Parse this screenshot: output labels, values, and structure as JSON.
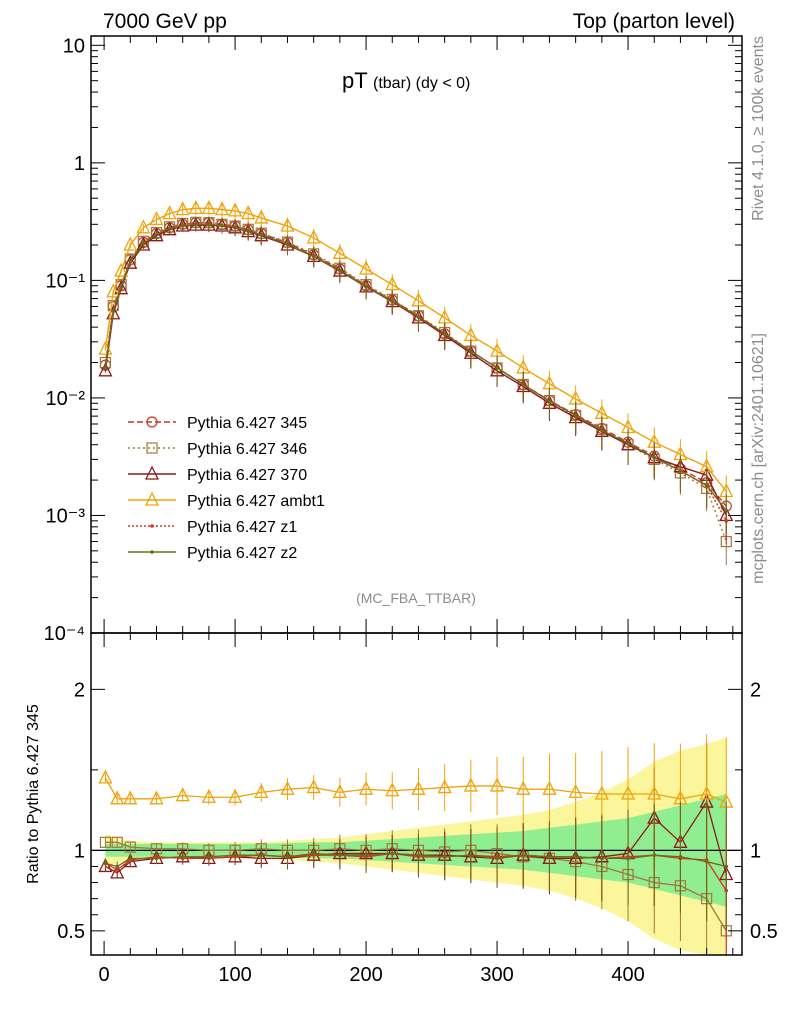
{
  "header": {
    "energy_label": "7000 GeV pp",
    "process_label": "Top (parton level)"
  },
  "side_labels": {
    "rivet": "Rivet 4.1.0, ≥ 100k events",
    "mcplots": "mcplots.cern.ch [arXiv:2401.10621]"
  },
  "chart_data": [
    {
      "type": "line",
      "panel": "main",
      "title_main": "pT",
      "title_sub": "(tbar) (dy < 0)",
      "analysis_label": "(MC_FBA_TTBAR)",
      "yscale": "log",
      "ylim": [
        0.0001,
        12
      ],
      "xlim": [
        -10,
        487
      ],
      "ytick_labels": [
        "10",
        "1",
        "10⁻¹",
        "10⁻²",
        "10⁻³",
        "10⁻⁴"
      ],
      "ytick_values": [
        10,
        1,
        0.1,
        0.01,
        0.001,
        0.0001
      ],
      "x": [
        1,
        7,
        13,
        20,
        30,
        40,
        50,
        60,
        70,
        80,
        90,
        100,
        110,
        120,
        140,
        160,
        180,
        200,
        220,
        240,
        260,
        280,
        300,
        320,
        340,
        360,
        380,
        400,
        420,
        440,
        460,
        475
      ],
      "series": [
        {
          "name": "Pythia 6.427 345",
          "color": "#c0392b",
          "marker": "circle",
          "dash": "6,3",
          "values": [
            0.019,
            0.06,
            0.09,
            0.15,
            0.21,
            0.25,
            0.28,
            0.3,
            0.31,
            0.31,
            0.3,
            0.29,
            0.27,
            0.25,
            0.21,
            0.165,
            0.125,
            0.09,
            0.068,
            0.05,
            0.035,
            0.025,
            0.018,
            0.013,
            0.0095,
            0.0072,
            0.0055,
            0.0042,
            0.0032,
            0.0025,
            0.0019,
            0.0012
          ]
        },
        {
          "name": "Pythia 6.427 346",
          "color": "#a0783c",
          "marker": "square",
          "dash": "2,3",
          "values": [
            0.02,
            0.061,
            0.092,
            0.152,
            0.215,
            0.255,
            0.285,
            0.305,
            0.312,
            0.31,
            0.3,
            0.29,
            0.272,
            0.252,
            0.212,
            0.168,
            0.127,
            0.092,
            0.069,
            0.05,
            0.036,
            0.025,
            0.018,
            0.013,
            0.0095,
            0.0071,
            0.0054,
            0.004,
            0.003,
            0.0023,
            0.0017,
            0.0006
          ]
        },
        {
          "name": "Pythia 6.427 370",
          "color": "#8b1a1a",
          "marker": "triangle",
          "dash": "",
          "values": [
            0.017,
            0.052,
            0.085,
            0.14,
            0.2,
            0.24,
            0.27,
            0.29,
            0.295,
            0.295,
            0.29,
            0.28,
            0.26,
            0.24,
            0.2,
            0.16,
            0.12,
            0.088,
            0.066,
            0.048,
            0.034,
            0.024,
            0.017,
            0.0125,
            0.009,
            0.0068,
            0.0052,
            0.004,
            0.0031,
            0.0026,
            0.0022,
            0.001
          ]
        },
        {
          "name": "Pythia 6.427 ambt1",
          "color": "#f0a30a",
          "marker": "triangle",
          "dash": "",
          "values": [
            0.026,
            0.08,
            0.12,
            0.2,
            0.28,
            0.33,
            0.37,
            0.4,
            0.41,
            0.41,
            0.4,
            0.39,
            0.37,
            0.34,
            0.29,
            0.23,
            0.17,
            0.125,
            0.092,
            0.067,
            0.048,
            0.034,
            0.025,
            0.018,
            0.0132,
            0.0098,
            0.0074,
            0.0056,
            0.0042,
            0.0033,
            0.0026,
            0.0016
          ]
        },
        {
          "name": "Pythia 6.427 z1",
          "color": "#e03020",
          "marker": "dot",
          "dash": "2,2",
          "values": [
            0.018,
            0.055,
            0.087,
            0.145,
            0.205,
            0.245,
            0.275,
            0.292,
            0.298,
            0.297,
            0.292,
            0.282,
            0.262,
            0.243,
            0.203,
            0.16,
            0.121,
            0.088,
            0.066,
            0.049,
            0.035,
            0.025,
            0.018,
            0.013,
            0.0094,
            0.007,
            0.0053,
            0.0041,
            0.0031,
            0.0024,
            0.0018,
            0.0009
          ]
        },
        {
          "name": "Pythia 6.427 z2",
          "color": "#6b6b1a",
          "marker": "dot",
          "dash": "",
          "values": [
            0.018,
            0.055,
            0.088,
            0.146,
            0.206,
            0.246,
            0.276,
            0.293,
            0.3,
            0.299,
            0.293,
            0.283,
            0.263,
            0.244,
            0.204,
            0.161,
            0.122,
            0.089,
            0.067,
            0.049,
            0.035,
            0.025,
            0.018,
            0.013,
            0.0094,
            0.0071,
            0.0053,
            0.0041,
            0.0031,
            0.0024,
            0.0018,
            0.0011
          ]
        }
      ]
    },
    {
      "type": "line",
      "panel": "ratio",
      "ylabel": "Ratio to Pythia 6.427 345",
      "ylim": [
        0.35,
        2.35
      ],
      "xlim": [
        -10,
        487
      ],
      "xtick_values": [
        0,
        100,
        200,
        300,
        400
      ],
      "xtick_labels": [
        "0",
        "100",
        "200",
        "300",
        "400"
      ],
      "ytick_values": [
        2,
        1,
        0.5
      ],
      "ytick_labels": [
        "2",
        "1",
        "0.5"
      ],
      "x": [
        1,
        10,
        20,
        40,
        60,
        80,
        100,
        120,
        140,
        160,
        180,
        200,
        220,
        240,
        260,
        280,
        300,
        320,
        340,
        360,
        380,
        400,
        420,
        440,
        460,
        475
      ],
      "band_green_halfwidth": [
        0.04,
        0.04,
        0.04,
        0.04,
        0.04,
        0.04,
        0.04,
        0.04,
        0.045,
        0.05,
        0.05,
        0.06,
        0.07,
        0.08,
        0.09,
        0.1,
        0.11,
        0.12,
        0.14,
        0.16,
        0.18,
        0.2,
        0.24,
        0.28,
        0.32,
        0.35
      ],
      "band_yellow_halfwidth": [
        0.1,
        0.08,
        0.06,
        0.05,
        0.05,
        0.05,
        0.05,
        0.05,
        0.06,
        0.07,
        0.08,
        0.1,
        0.12,
        0.14,
        0.16,
        0.18,
        0.2,
        0.22,
        0.25,
        0.3,
        0.36,
        0.44,
        0.55,
        0.62,
        0.66,
        0.7
      ],
      "series": [
        {
          "name": "Pythia 6.427 346",
          "color": "#a0783c",
          "values": [
            1.05,
            1.05,
            1.02,
            1.01,
            1.01,
            1.0,
            1.0,
            1.01,
            1.0,
            1.0,
            1.01,
            1.0,
            1.01,
            1.0,
            0.99,
            1.0,
            0.98,
            0.96,
            0.95,
            0.93,
            0.9,
            0.85,
            0.8,
            0.78,
            0.7,
            0.5
          ]
        },
        {
          "name": "Pythia 6.427 370",
          "color": "#8b1a1a",
          "values": [
            0.9,
            0.86,
            0.93,
            0.95,
            0.96,
            0.95,
            0.96,
            0.95,
            0.95,
            0.97,
            0.98,
            0.98,
            0.98,
            0.97,
            0.97,
            0.96,
            0.95,
            0.97,
            0.95,
            0.95,
            0.96,
            0.98,
            1.2,
            1.05,
            1.3,
            0.85
          ]
        },
        {
          "name": "Pythia 6.427 ambt1",
          "color": "#f0a30a",
          "values": [
            1.45,
            1.32,
            1.32,
            1.32,
            1.34,
            1.33,
            1.33,
            1.36,
            1.38,
            1.39,
            1.36,
            1.38,
            1.37,
            1.38,
            1.39,
            1.4,
            1.4,
            1.38,
            1.38,
            1.36,
            1.35,
            1.35,
            1.35,
            1.32,
            1.35,
            1.3
          ]
        },
        {
          "name": "Pythia 6.427 z1",
          "color": "#e03020",
          "values": [
            0.92,
            0.88,
            0.94,
            0.96,
            0.95,
            0.95,
            0.96,
            0.97,
            0.96,
            0.97,
            0.97,
            0.96,
            0.98,
            0.96,
            0.96,
            0.97,
            0.96,
            0.97,
            0.96,
            0.96,
            0.95,
            0.96,
            0.97,
            0.95,
            0.94,
            0.75
          ]
        },
        {
          "name": "Pythia 6.427 z2",
          "color": "#6b6b1a",
          "values": [
            0.92,
            0.9,
            0.95,
            0.95,
            0.96,
            0.96,
            0.97,
            0.97,
            0.96,
            0.98,
            0.97,
            0.97,
            0.98,
            0.97,
            0.96,
            0.97,
            0.95,
            0.97,
            0.96,
            0.96,
            0.95,
            0.95,
            0.97,
            0.96,
            0.93,
            0.9
          ]
        }
      ]
    }
  ]
}
